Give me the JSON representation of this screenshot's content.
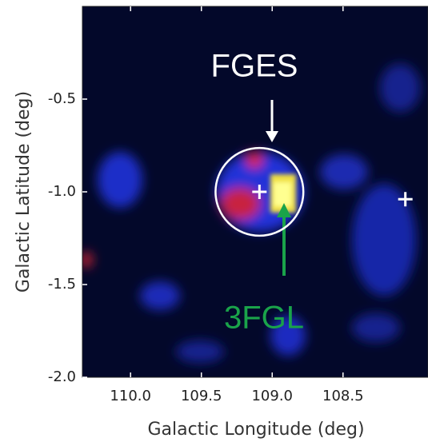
{
  "chart_data": {
    "type": "skymap",
    "xlabel": "Galactic Longitude (deg)",
    "ylabel": "Galactic Latitude (deg)",
    "xlim": [
      110.34,
      107.9
    ],
    "ylim": [
      -2.0,
      0.0
    ],
    "xticks": [
      {
        "value": 110,
        "label": "110.0"
      },
      109.5,
      {
        "value": 109,
        "label": "109.0"
      },
      108.5
    ],
    "yticks": [
      -0.5,
      {
        "value": -1,
        "label": "-1.0"
      },
      -1.5,
      {
        "value": -2,
        "label": "-2.0"
      }
    ],
    "circle": {
      "x": 109.09,
      "y": -1.0,
      "radius": 0.31,
      "color": "#ffffff"
    },
    "crosses": {
      "x": [
        109.09,
        108.06
      ],
      "y": [
        -1.0,
        -1.04
      ],
      "color": "#ffffff"
    },
    "annotations": [
      {
        "text": "FGES",
        "color": "#ffffff"
      },
      {
        "text": "3FGL",
        "color": "#1aa34a"
      }
    ]
  }
}
